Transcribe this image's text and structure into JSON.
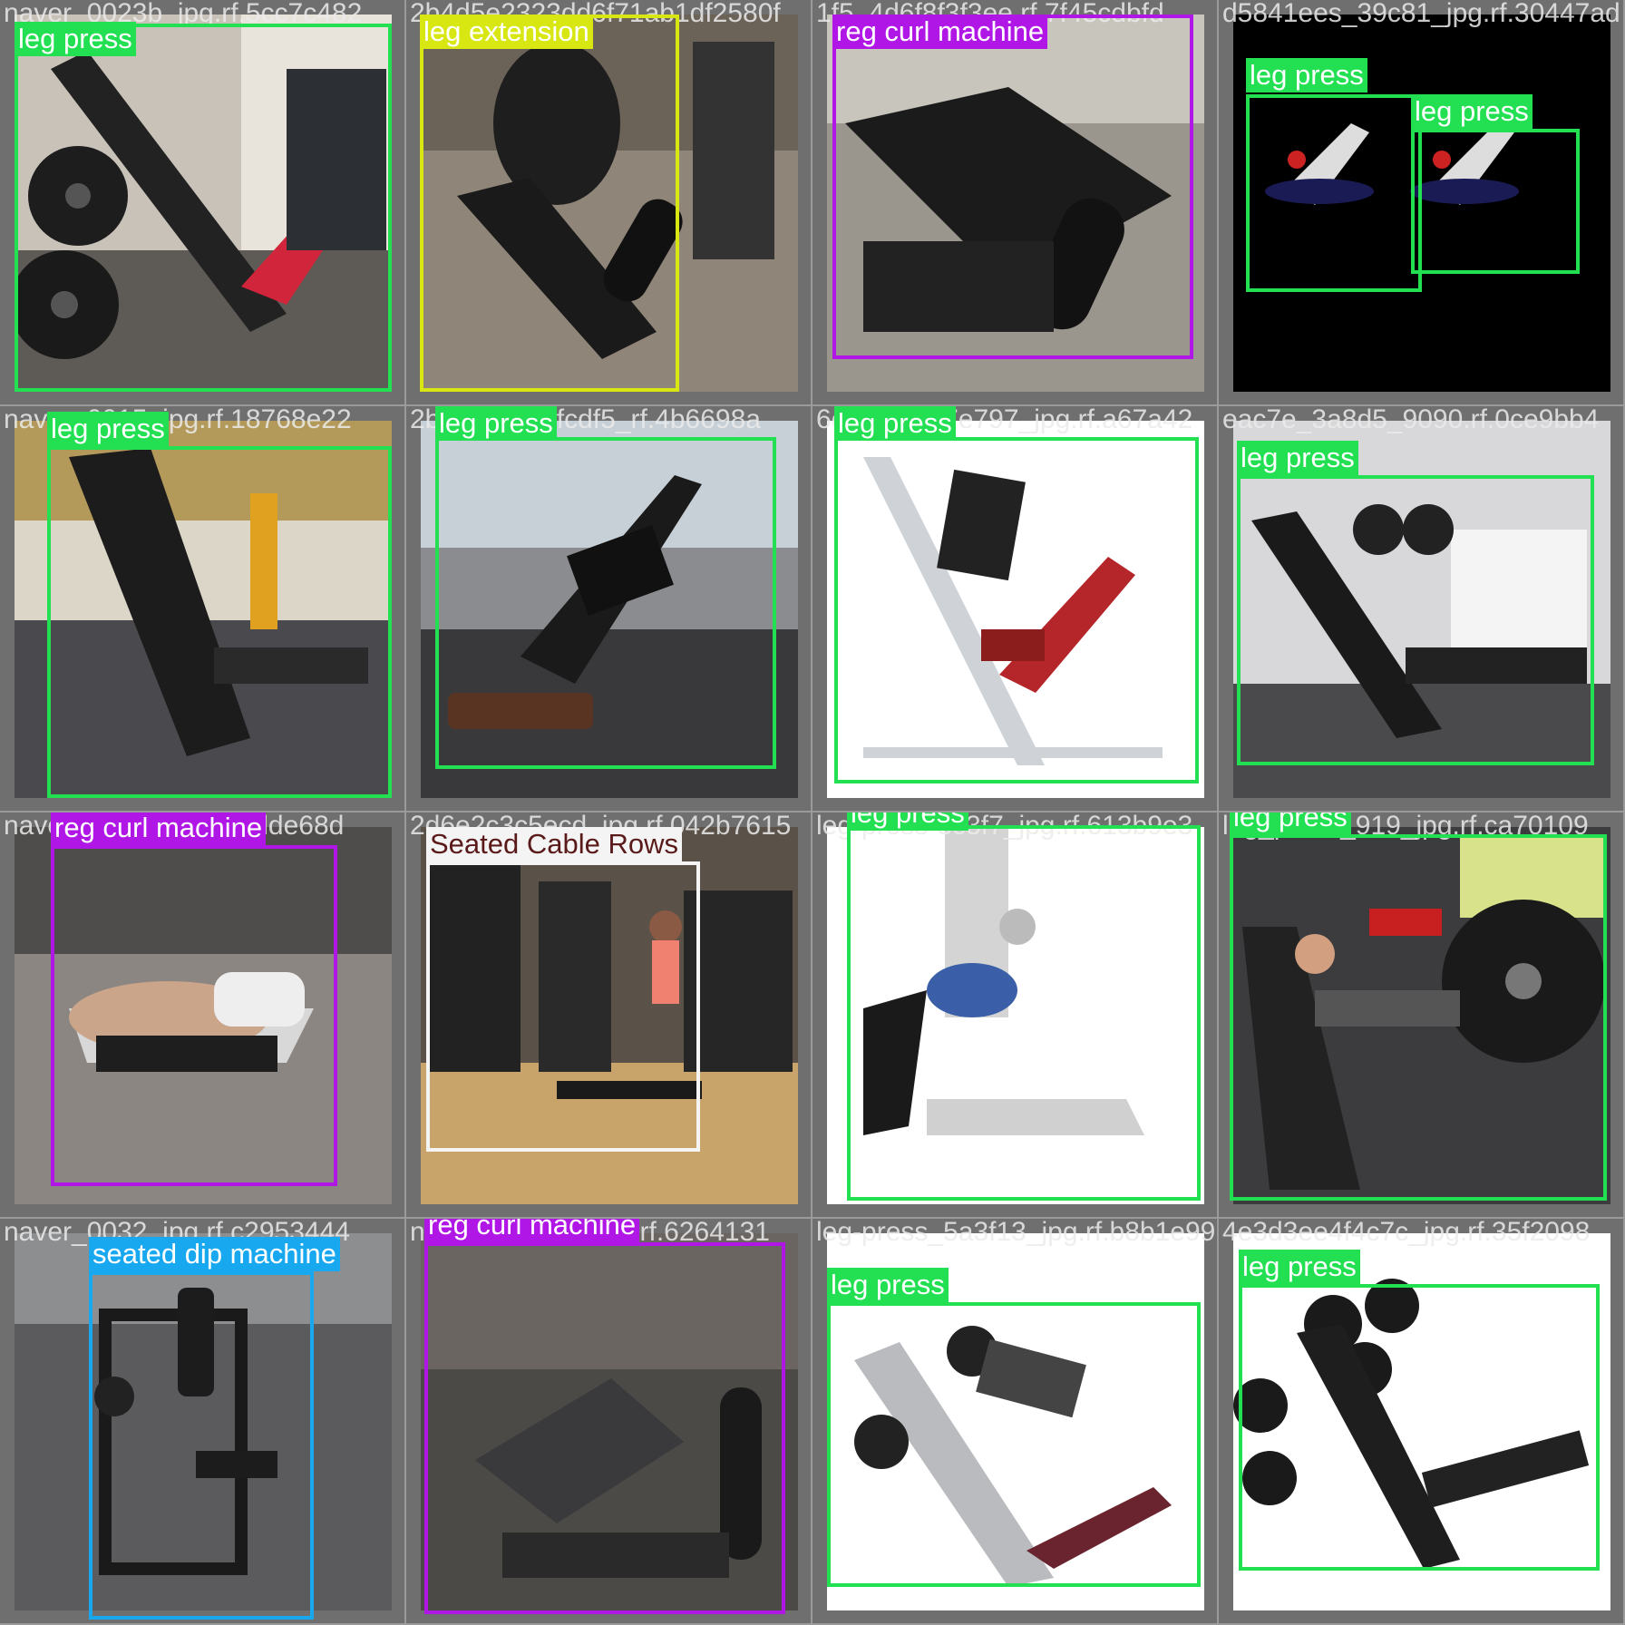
{
  "colors": {
    "leg_press": "#22e052",
    "leg_extension": "#d8e612",
    "reg_curl_machine": "#b016e6",
    "seated_cable_rows": "#f4f4f4",
    "seated_dip_machine": "#18a8f0"
  },
  "tiles": [
    {
      "file": "naver_0023b_jpg.rf.5cc7c482",
      "labels": [
        "leg press"
      ]
    },
    {
      "file": "2b4d5e2323dd6f71ab1df2580f",
      "labels": [
        "leg extension"
      ]
    },
    {
      "file": "1f5_4d6f8f3f3ee.rf.7f45cdbfd",
      "labels": [
        "reg curl machine"
      ]
    },
    {
      "file": "d5841ees_39c81_jpg.rf.30447ad",
      "labels": [
        "leg press",
        "leg press"
      ]
    },
    {
      "file": "naver_0015_jpg.rf.18768e22",
      "labels": [
        "leg press"
      ]
    },
    {
      "file": "2b8cf2f5ccafcdf5_rf.4b6698a",
      "labels": [
        "leg press"
      ]
    },
    {
      "file": "6c3f_00f_f7e797_jpg.rf.a67a42",
      "labels": [
        "leg press"
      ]
    },
    {
      "file": "eac7e_3a8d5_9090.rf.0ce9bb4",
      "labels": [
        "leg press"
      ]
    },
    {
      "file": "naver_0022a_jpg.rf.fdde68d",
      "labels": [
        "reg curl machine"
      ]
    },
    {
      "file": "2d6e2c3c5ecd_jpg.rf.042b7615",
      "labels": [
        "Seated Cable Rows"
      ]
    },
    {
      "file": "leg-press-3c3f7_jpg.rf.613b9e3",
      "labels": [
        "leg press"
      ]
    },
    {
      "file": "leg_press_919_jpg.rf.ca70109",
      "labels": [
        "leg press"
      ]
    },
    {
      "file": "naver_0032_jpg.rf.c2953444",
      "labels": [
        "seated dip machine"
      ]
    },
    {
      "file": "naver_9ecc3a_jpg.rf.6264131",
      "labels": [
        "reg curl machine"
      ]
    },
    {
      "file": "leg-press_5a3f13_jpg.rf.b8b1e99",
      "labels": [
        "leg press"
      ]
    },
    {
      "file": "4e3d3ee4f4c7c_jpg.rf.35f2098",
      "labels": [
        "leg press"
      ]
    }
  ]
}
